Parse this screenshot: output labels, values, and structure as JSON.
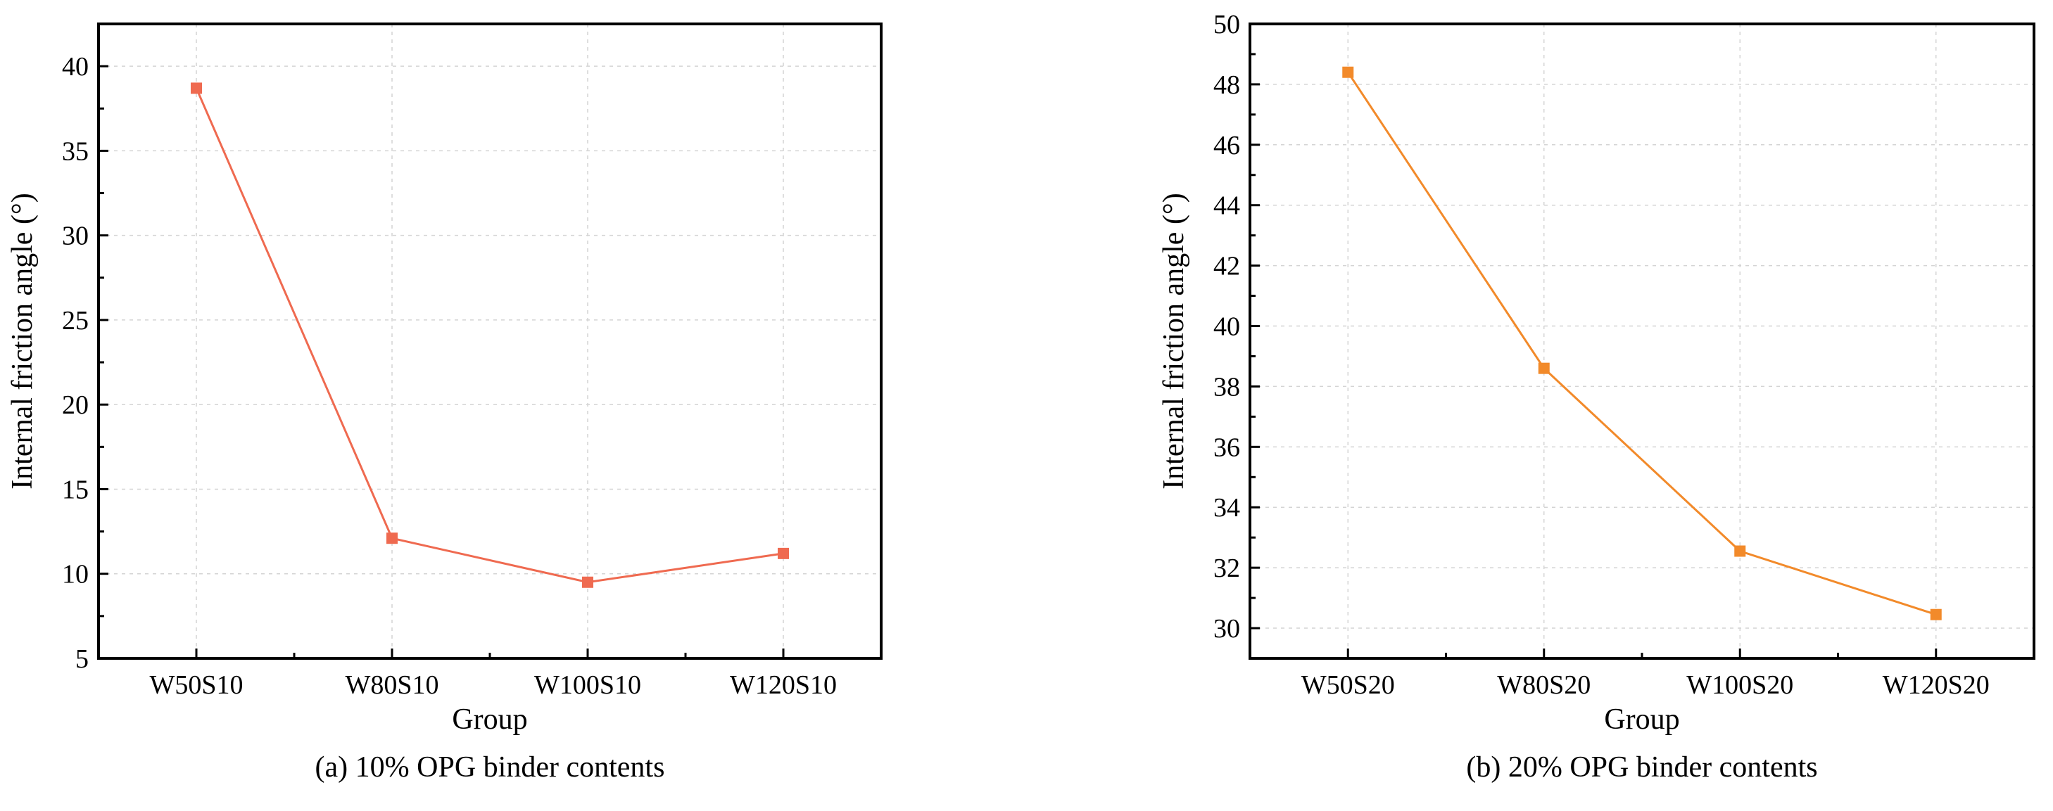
{
  "chart_data": [
    {
      "type": "line",
      "caption": "(a) 10% OPG binder contents",
      "xlabel": "Group",
      "ylabel": "Internal friction angle (°)",
      "categories": [
        "W50S10",
        "W80S10",
        "W100S10",
        "W120S10"
      ],
      "series": [
        {
          "name": "10% OPG",
          "values": [
            38.7,
            12.1,
            9.5,
            11.2
          ],
          "color": "#ef6a50"
        }
      ],
      "ylim": [
        5,
        42.5
      ],
      "yticks": [
        5,
        10,
        15,
        20,
        25,
        30,
        35,
        40
      ],
      "grid": true
    },
    {
      "type": "line",
      "caption": "(b) 20% OPG binder contents",
      "xlabel": "Group",
      "ylabel": "Internal friction angle (°)",
      "categories": [
        "W50S20",
        "W80S20",
        "W100S20",
        "W120S20"
      ],
      "series": [
        {
          "name": "20% OPG",
          "values": [
            48.4,
            38.6,
            32.55,
            30.45
          ],
          "color": "#f28a2a"
        }
      ],
      "ylim": [
        29,
        50
      ],
      "yticks": [
        30,
        32,
        34,
        36,
        38,
        40,
        42,
        44,
        46,
        48,
        50
      ],
      "grid": true
    }
  ]
}
